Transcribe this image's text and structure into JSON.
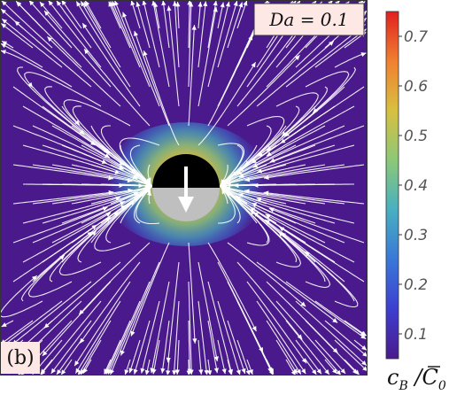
{
  "chart_data": {
    "type": "heatmap",
    "field": "concentration of species B with streamlines",
    "annotation": "Da = 0.1",
    "panel_label": "(b)",
    "colorbar": {
      "label": "c_B / C̄_0",
      "label_main": "c",
      "label_sub": "B",
      "label_sep": " /",
      "label_over": "C",
      "label_sub2": "0",
      "range": [
        0.05,
        0.75
      ],
      "ticks": [
        0.1,
        0.2,
        0.3,
        0.4,
        0.5,
        0.6,
        0.7
      ],
      "tick_labels": [
        "0.1",
        "0.2",
        "0.3",
        "0.4",
        "0.5",
        "0.6",
        "0.7"
      ],
      "colors": [
        "#4a1a8c",
        "#3d3fd0",
        "#3a78d8",
        "#48b0c0",
        "#8cc878",
        "#d8c040",
        "#f08030",
        "#e02020"
      ]
    },
    "particle": {
      "top_color": "#000000",
      "bottom_color": "#bfbfbf",
      "arrow_direction": "down"
    },
    "background_value": 0.08,
    "peak_value": 0.75,
    "streamline_color": "#ffffff"
  }
}
